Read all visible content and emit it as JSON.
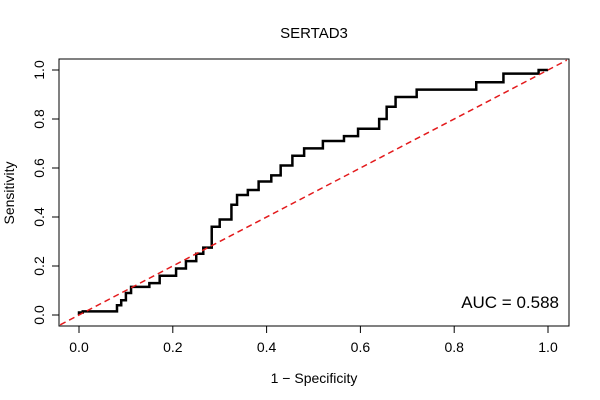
{
  "chart_data": {
    "type": "line",
    "title": "SERTAD3",
    "xlabel": "1 − Specificity",
    "ylabel": "Sensitivity",
    "xlim": [
      0,
      1
    ],
    "ylim": [
      0,
      1
    ],
    "x_ticks": [
      0.0,
      0.2,
      0.4,
      0.6,
      0.8,
      1.0
    ],
    "y_ticks": [
      0.0,
      0.2,
      0.4,
      0.6,
      0.8,
      1.0
    ],
    "x_tick_labels": [
      "0.0",
      "0.2",
      "0.4",
      "0.6",
      "0.8",
      "1.0"
    ],
    "y_tick_labels": [
      "0.0",
      "0.2",
      "0.4",
      "0.6",
      "0.8",
      "1.0"
    ],
    "annotation": "AUC = 0.588",
    "colors": {
      "roc": "#000000",
      "reference": "#e31a1c"
    },
    "series": [
      {
        "name": "ROC curve",
        "style": "solid",
        "x": [
          0.0,
          0.0,
          0.008,
          0.008,
          0.081,
          0.081,
          0.09,
          0.09,
          0.1,
          0.1,
          0.111,
          0.111,
          0.15,
          0.15,
          0.172,
          0.172,
          0.207,
          0.207,
          0.228,
          0.228,
          0.25,
          0.25,
          0.265,
          0.265,
          0.283,
          0.283,
          0.3,
          0.3,
          0.325,
          0.325,
          0.337,
          0.337,
          0.36,
          0.36,
          0.383,
          0.383,
          0.41,
          0.41,
          0.43,
          0.43,
          0.455,
          0.455,
          0.48,
          0.48,
          0.52,
          0.52,
          0.565,
          0.565,
          0.595,
          0.595,
          0.64,
          0.64,
          0.656,
          0.656,
          0.675,
          0.675,
          0.72,
          0.72,
          0.847,
          0.847,
          0.905,
          0.905,
          0.98,
          0.98,
          1.0
        ],
        "y": [
          0.0,
          0.01,
          0.01,
          0.015,
          0.015,
          0.04,
          0.04,
          0.06,
          0.06,
          0.09,
          0.09,
          0.115,
          0.115,
          0.13,
          0.13,
          0.16,
          0.16,
          0.19,
          0.19,
          0.22,
          0.22,
          0.25,
          0.25,
          0.275,
          0.275,
          0.36,
          0.36,
          0.39,
          0.39,
          0.45,
          0.45,
          0.49,
          0.49,
          0.51,
          0.51,
          0.545,
          0.545,
          0.57,
          0.57,
          0.61,
          0.61,
          0.65,
          0.65,
          0.68,
          0.68,
          0.71,
          0.71,
          0.73,
          0.73,
          0.76,
          0.76,
          0.8,
          0.8,
          0.85,
          0.85,
          0.89,
          0.89,
          0.92,
          0.92,
          0.95,
          0.95,
          0.985,
          0.985,
          1.0,
          1.0
        ]
      },
      {
        "name": "Reference line",
        "style": "dashed",
        "x": [
          -0.04,
          1.04
        ],
        "y": [
          -0.04,
          1.04
        ]
      }
    ]
  }
}
